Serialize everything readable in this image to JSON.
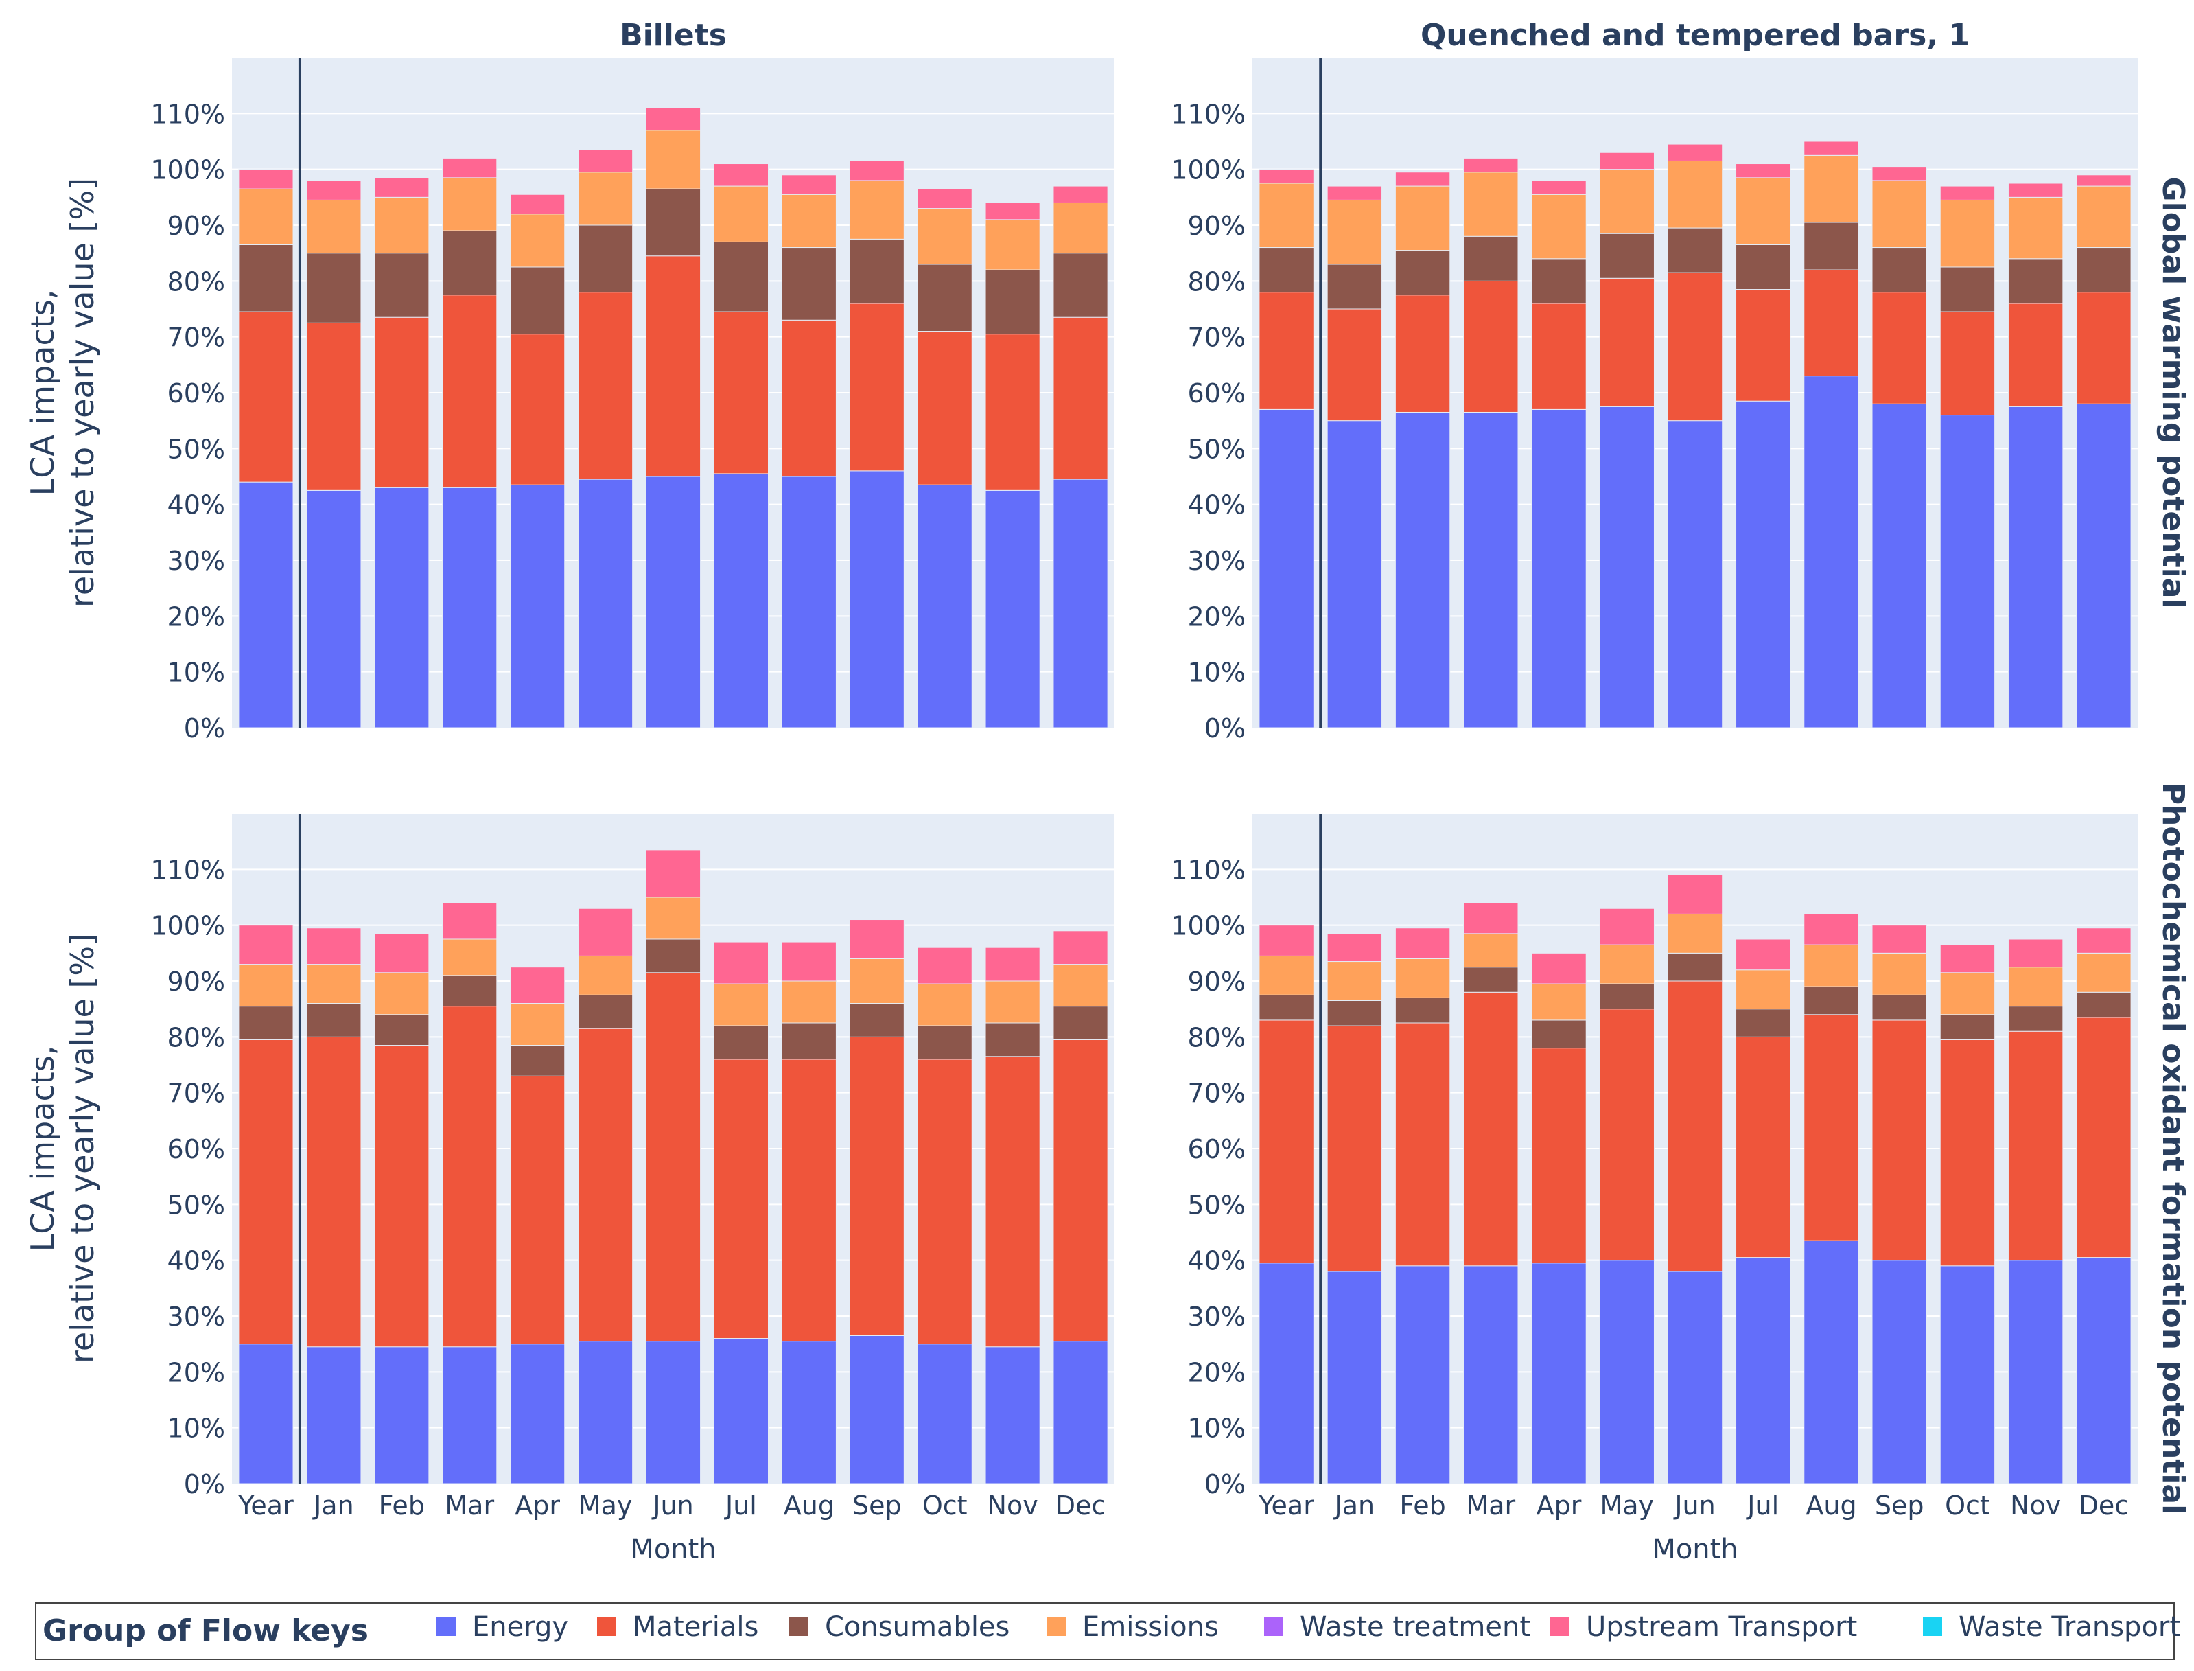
{
  "figure": {
    "x_label": "Month",
    "y_label_line1": "LCA impacts,",
    "y_label_line2": "relative to yearly value [%]",
    "row_titles": [
      "Global warming potential",
      "Photochemical oxidant formation potential"
    ],
    "col_titles": [
      "Billets",
      "Quenched and tempered bars, 1"
    ],
    "y_ticks": [
      "0%",
      "10%",
      "20%",
      "30%",
      "40%",
      "50%",
      "60%",
      "70%",
      "80%",
      "90%",
      "100%",
      "110%"
    ]
  },
  "legend": {
    "title": "Group of Flow keys",
    "items": [
      {
        "label": "Energy",
        "color": "#636efa"
      },
      {
        "label": "Materials",
        "color": "#ef553b"
      },
      {
        "label": "Consumables",
        "color": "#8c564b"
      },
      {
        "label": "Emissions",
        "color": "#ffa15a"
      },
      {
        "label": "Waste treatment",
        "color": "#ab63fa"
      },
      {
        "label": "Upstream Transport",
        "color": "#ff6692"
      },
      {
        "label": "Waste Transport",
        "color": "#19d3f3"
      }
    ]
  },
  "chart_data": [
    {
      "type": "bar",
      "barmode": "stack",
      "title": "Billets",
      "row_label": "Global warming potential",
      "categories": [
        "Year",
        "Jan",
        "Feb",
        "Mar",
        "Apr",
        "May",
        "Jun",
        "Jul",
        "Aug",
        "Sep",
        "Oct",
        "Nov",
        "Dec"
      ],
      "ylim": [
        0,
        120
      ],
      "series": [
        {
          "name": "Energy",
          "values": [
            44,
            42.5,
            43,
            43,
            43.5,
            44.5,
            45,
            45.5,
            45,
            46,
            43.5,
            42.5,
            44.5
          ]
        },
        {
          "name": "Materials",
          "values": [
            30.5,
            30,
            30.5,
            34.5,
            27,
            33.5,
            39.5,
            29,
            28,
            30,
            27.5,
            28,
            29
          ]
        },
        {
          "name": "Consumables",
          "values": [
            12,
            12.5,
            11.5,
            11.5,
            12,
            12,
            12,
            12.5,
            13,
            11.5,
            12,
            11.5,
            11.5
          ]
        },
        {
          "name": "Emissions",
          "values": [
            10,
            9.5,
            10,
            9.5,
            9.5,
            9.5,
            10.5,
            10,
            9.5,
            10.5,
            10,
            9,
            9
          ]
        },
        {
          "name": "Waste treatment",
          "values": [
            0,
            0,
            0,
            0,
            0,
            0,
            0,
            0,
            0,
            0,
            0,
            0,
            0
          ]
        },
        {
          "name": "Upstream Transport",
          "values": [
            3.5,
            3.5,
            3.5,
            3.5,
            3.5,
            4,
            4,
            4,
            3.5,
            3.5,
            3.5,
            3,
            3
          ]
        },
        {
          "name": "Waste Transport",
          "values": [
            0,
            0,
            0,
            0,
            0,
            0,
            0,
            0,
            0,
            0,
            0,
            0,
            0
          ]
        }
      ]
    },
    {
      "type": "bar",
      "barmode": "stack",
      "title": "Quenched and tempered bars, 1",
      "row_label": "Global warming potential",
      "categories": [
        "Year",
        "Jan",
        "Feb",
        "Mar",
        "Apr",
        "May",
        "Jun",
        "Jul",
        "Aug",
        "Sep",
        "Oct",
        "Nov",
        "Dec"
      ],
      "ylim": [
        0,
        120
      ],
      "series": [
        {
          "name": "Energy",
          "values": [
            57,
            55,
            56.5,
            56.5,
            57,
            57.5,
            55,
            58.5,
            63,
            58,
            56,
            57.5,
            58
          ]
        },
        {
          "name": "Materials",
          "values": [
            21,
            20,
            21,
            23.5,
            19,
            23,
            26.5,
            20,
            19,
            20,
            18.5,
            18.5,
            20
          ]
        },
        {
          "name": "Consumables",
          "values": [
            8,
            8,
            8,
            8,
            8,
            8,
            8,
            8,
            8.5,
            8,
            8,
            8,
            8
          ]
        },
        {
          "name": "Emissions",
          "values": [
            11.5,
            11.5,
            11.5,
            11.5,
            11.5,
            11.5,
            12,
            12,
            12,
            12,
            12,
            11,
            11
          ]
        },
        {
          "name": "Waste treatment",
          "values": [
            0,
            0,
            0,
            0,
            0,
            0,
            0,
            0,
            0,
            0,
            0,
            0,
            0
          ]
        },
        {
          "name": "Upstream Transport",
          "values": [
            2.5,
            2.5,
            2.5,
            2.5,
            2.5,
            3,
            3,
            2.5,
            2.5,
            2.5,
            2.5,
            2.5,
            2
          ]
        },
        {
          "name": "Waste Transport",
          "values": [
            0,
            0,
            0,
            0,
            0,
            0,
            0,
            0,
            0,
            0,
            0,
            0,
            0
          ]
        }
      ]
    },
    {
      "type": "bar",
      "barmode": "stack",
      "title": "Billets",
      "row_label": "Photochemical oxidant formation potential",
      "categories": [
        "Year",
        "Jan",
        "Feb",
        "Mar",
        "Apr",
        "May",
        "Jun",
        "Jul",
        "Aug",
        "Sep",
        "Oct",
        "Nov",
        "Dec"
      ],
      "ylim": [
        0,
        120
      ],
      "series": [
        {
          "name": "Energy",
          "values": [
            25,
            24.5,
            24.5,
            24.5,
            25,
            25.5,
            25.5,
            26,
            25.5,
            26.5,
            25,
            24.5,
            25.5
          ]
        },
        {
          "name": "Materials",
          "values": [
            54.5,
            55.5,
            54,
            61,
            48,
            56,
            66,
            50,
            50.5,
            53.5,
            51,
            52,
            54
          ]
        },
        {
          "name": "Consumables",
          "values": [
            6,
            6,
            5.5,
            5.5,
            5.5,
            6,
            6,
            6,
            6.5,
            6,
            6,
            6,
            6
          ]
        },
        {
          "name": "Emissions",
          "values": [
            7.5,
            7,
            7.5,
            6.5,
            7.5,
            7,
            7.5,
            7.5,
            7.5,
            8,
            7.5,
            7.5,
            7.5
          ]
        },
        {
          "name": "Waste treatment",
          "values": [
            0,
            0,
            0,
            0,
            0,
            0,
            0,
            0,
            0,
            0,
            0,
            0,
            0
          ]
        },
        {
          "name": "Upstream Transport",
          "values": [
            7,
            6.5,
            7,
            6.5,
            6.5,
            8.5,
            8.5,
            7.5,
            7,
            7,
            6.5,
            6,
            6
          ]
        },
        {
          "name": "Waste Transport",
          "values": [
            0,
            0,
            0,
            0,
            0,
            0,
            0,
            0,
            0,
            0,
            0,
            0,
            0
          ]
        }
      ]
    },
    {
      "type": "bar",
      "barmode": "stack",
      "title": "Quenched and tempered bars, 1",
      "row_label": "Photochemical oxidant formation potential",
      "categories": [
        "Year",
        "Jan",
        "Feb",
        "Mar",
        "Apr",
        "May",
        "Jun",
        "Jul",
        "Aug",
        "Sep",
        "Oct",
        "Nov",
        "Dec"
      ],
      "ylim": [
        0,
        120
      ],
      "series": [
        {
          "name": "Energy",
          "values": [
            39.5,
            38,
            39,
            39,
            39.5,
            40,
            38,
            40.5,
            43.5,
            40,
            39,
            40,
            40.5
          ]
        },
        {
          "name": "Materials",
          "values": [
            43.5,
            44,
            43.5,
            49,
            38.5,
            45,
            52,
            39.5,
            40.5,
            43,
            40.5,
            41,
            43
          ]
        },
        {
          "name": "Consumables",
          "values": [
            4.5,
            4.5,
            4.5,
            4.5,
            5,
            4.5,
            5,
            5,
            5,
            4.5,
            4.5,
            4.5,
            4.5
          ]
        },
        {
          "name": "Emissions",
          "values": [
            7,
            7,
            7,
            6,
            6.5,
            7,
            7,
            7,
            7.5,
            7.5,
            7.5,
            7,
            7
          ]
        },
        {
          "name": "Waste treatment",
          "values": [
            0,
            0,
            0,
            0,
            0,
            0,
            0,
            0,
            0,
            0,
            0,
            0,
            0
          ]
        },
        {
          "name": "Upstream Transport",
          "values": [
            5.5,
            5,
            5.5,
            5.5,
            5.5,
            6.5,
            7,
            5.5,
            5.5,
            5,
            5,
            5,
            4.5
          ]
        },
        {
          "name": "Waste Transport",
          "values": [
            0,
            0,
            0,
            0,
            0,
            0,
            0,
            0,
            0,
            0,
            0,
            0,
            0
          ]
        }
      ]
    }
  ]
}
